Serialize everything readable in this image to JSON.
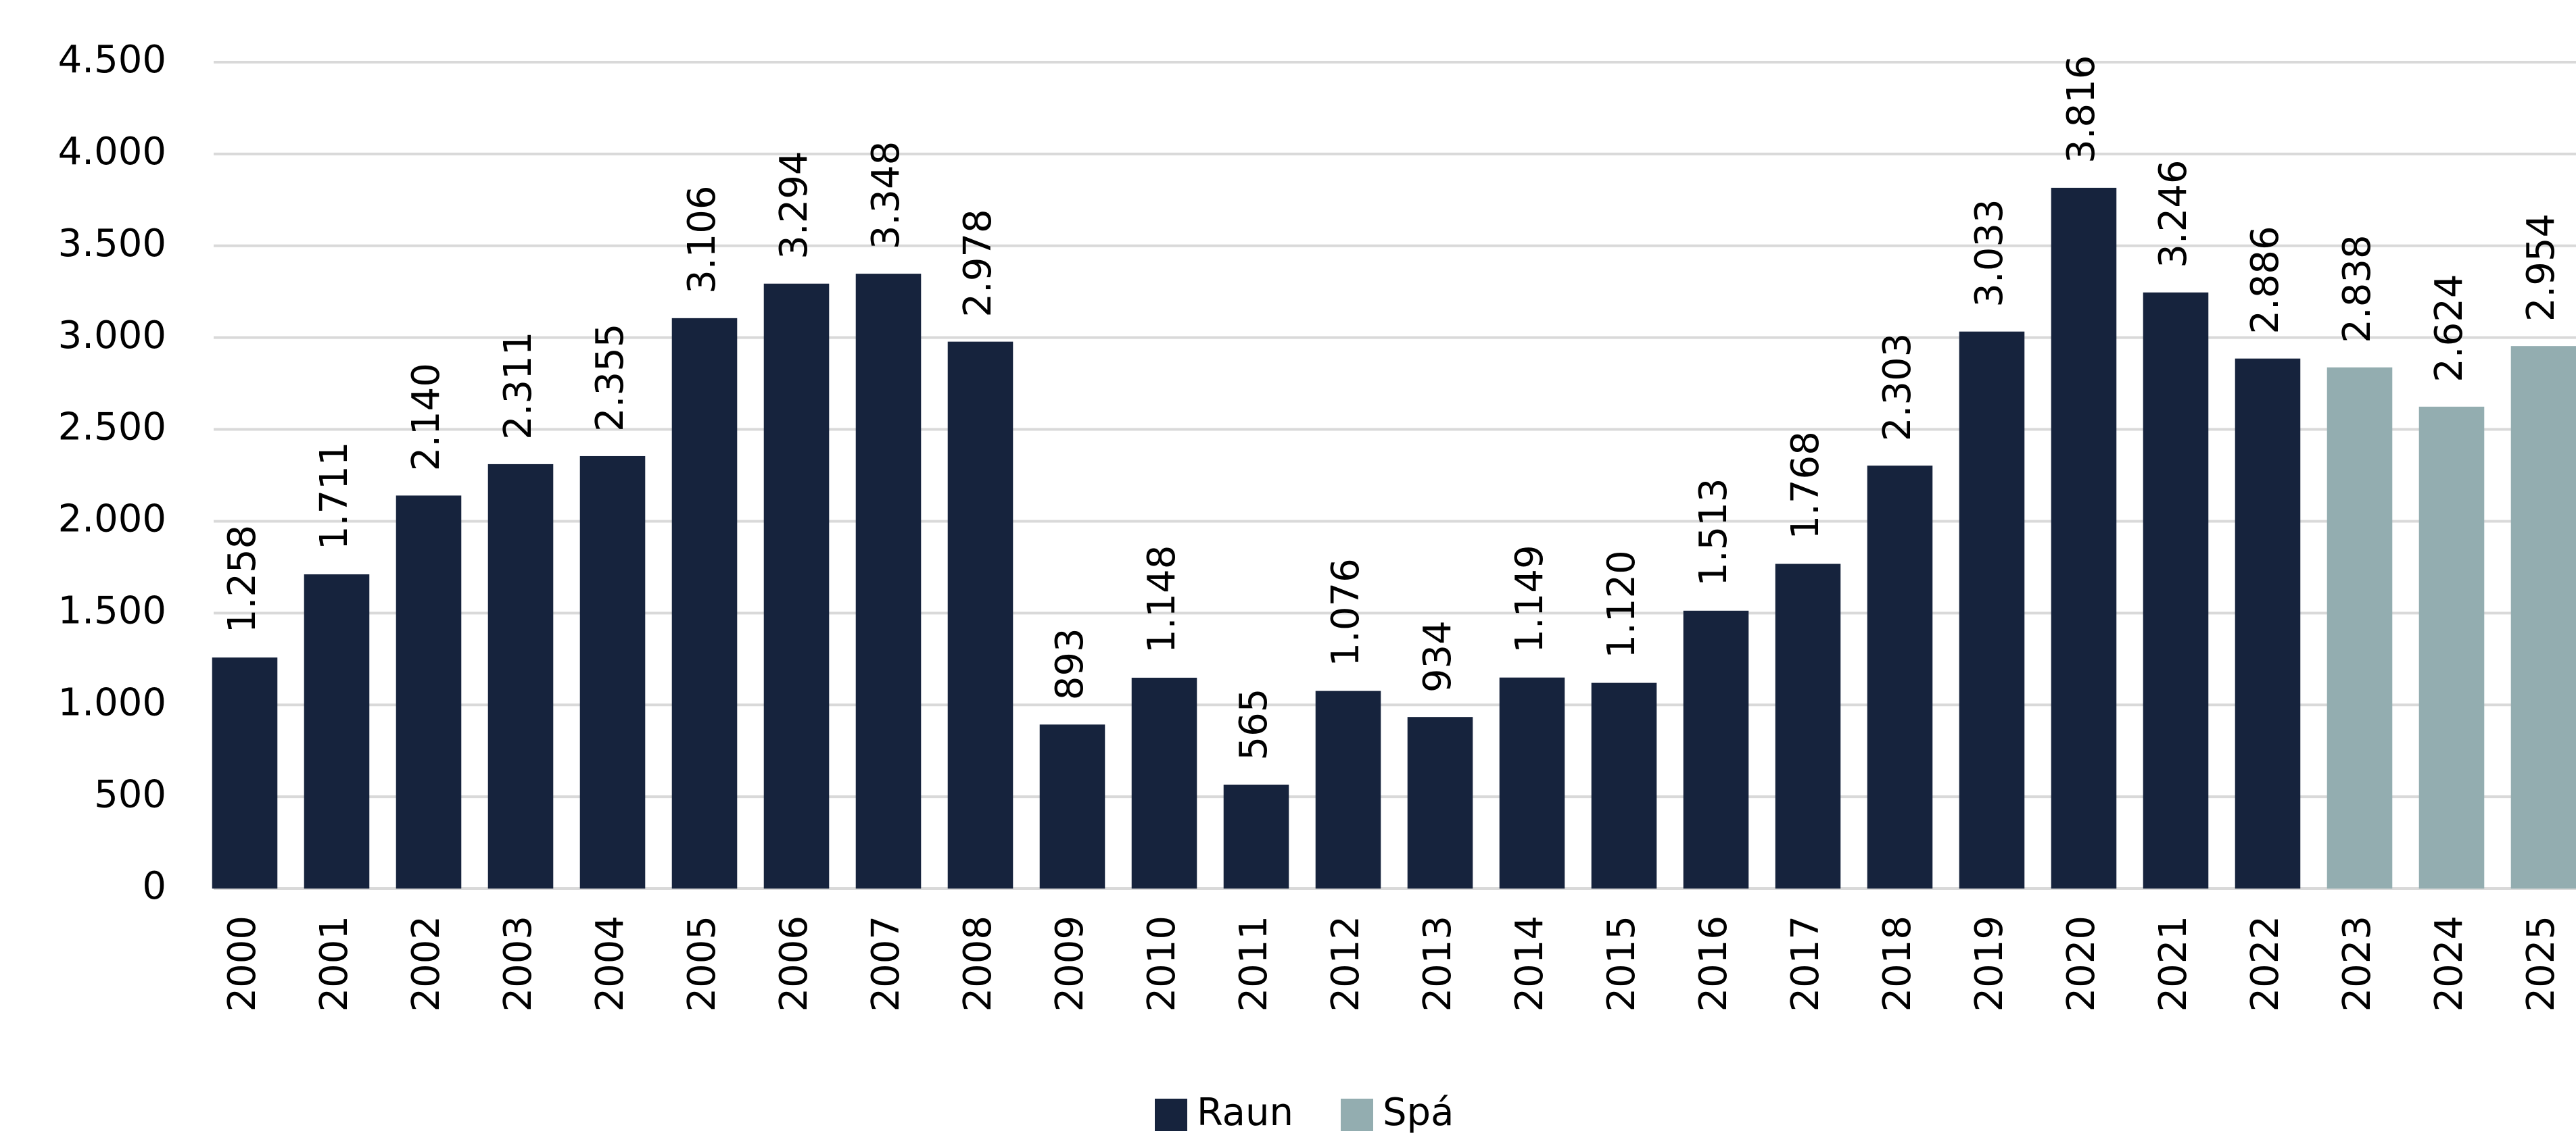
{
  "chart_data": {
    "type": "bar",
    "categories": [
      "2000",
      "2001",
      "2002",
      "2003",
      "2004",
      "2005",
      "2006",
      "2007",
      "2008",
      "2009",
      "2010",
      "2011",
      "2012",
      "2013",
      "2014",
      "2015",
      "2016",
      "2017",
      "2018",
      "2019",
      "2020",
      "2021",
      "2022",
      "2023",
      "2024",
      "2025"
    ],
    "series": [
      {
        "name": "Raun",
        "color": "#16233d",
        "values": [
          1258,
          1711,
          2140,
          2311,
          2355,
          3106,
          3294,
          3348,
          2978,
          893,
          1148,
          565,
          1076,
          934,
          1149,
          1120,
          1513,
          1768,
          2303,
          3033,
          3816,
          3246,
          2886,
          null,
          null,
          null
        ],
        "value_labels": [
          "1.258",
          "1.711",
          "2.140",
          "2.311",
          "2.355",
          "3.106",
          "3.294",
          "3.348",
          "2.978",
          "893",
          "1.148",
          "565",
          "1.076",
          "934",
          "1.149",
          "1.120",
          "1.513",
          "1.768",
          "2.303",
          "3.033",
          "3.816",
          "3.246",
          "2.886",
          null,
          null,
          null
        ]
      },
      {
        "name": "Spá",
        "color": "#93adb0",
        "values": [
          null,
          null,
          null,
          null,
          null,
          null,
          null,
          null,
          null,
          null,
          null,
          null,
          null,
          null,
          null,
          null,
          null,
          null,
          null,
          null,
          null,
          null,
          null,
          2838,
          2624,
          2954
        ],
        "value_labels": [
          null,
          null,
          null,
          null,
          null,
          null,
          null,
          null,
          null,
          null,
          null,
          null,
          null,
          null,
          null,
          null,
          null,
          null,
          null,
          null,
          null,
          null,
          null,
          "2.838",
          "2.624",
          "2.954"
        ]
      }
    ],
    "ylim": [
      0,
      4500
    ],
    "yticks": [
      0,
      500,
      {
        "value": 1000,
        "label": "1.000"
      },
      {
        "value": 1500,
        "label": "1.500"
      },
      {
        "value": 2000,
        "label": "2.000"
      },
      {
        "value": 2500,
        "label": "2.500"
      },
      {
        "value": 3000,
        "label": "3.000"
      },
      {
        "value": 3500,
        "label": "3.500"
      },
      {
        "value": 4000,
        "label": "4.000"
      },
      {
        "value": 4500,
        "label": "4.500"
      }
    ],
    "grid": true,
    "legend": "bottom"
  }
}
